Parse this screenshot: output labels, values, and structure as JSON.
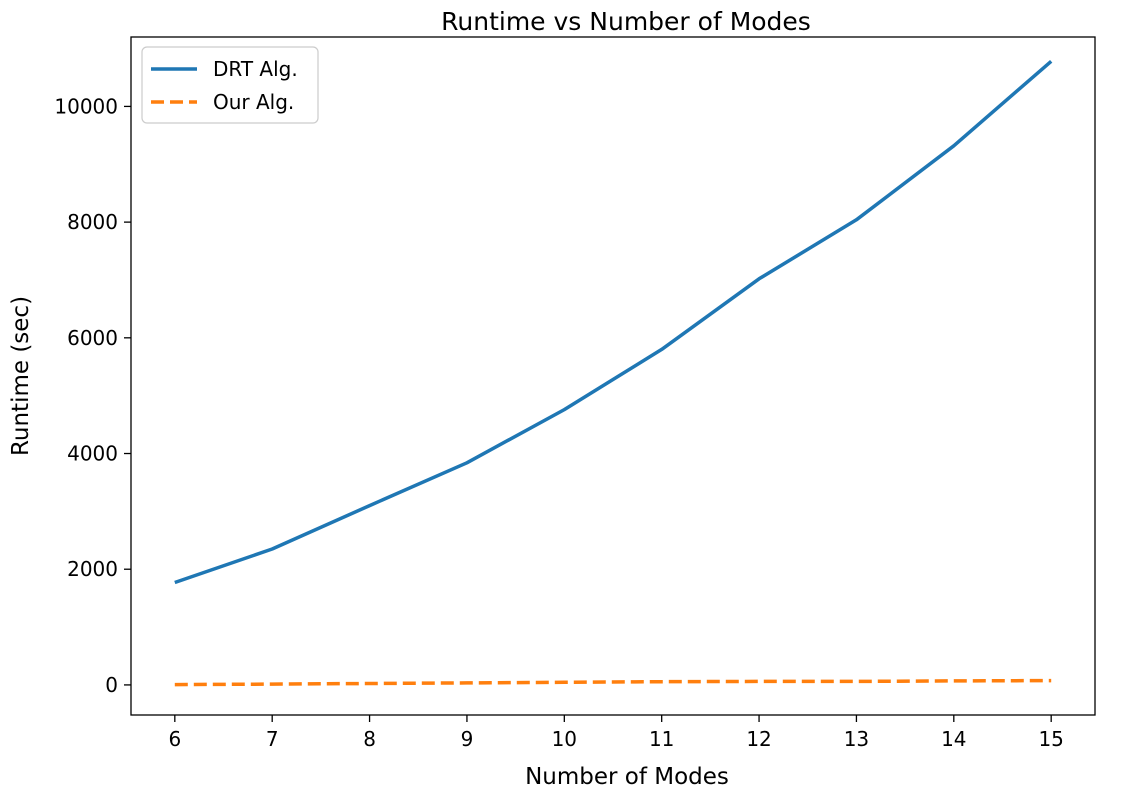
{
  "chart_data": {
    "type": "line",
    "title": "Runtime vs Number of Modes",
    "xlabel": "Number of Modes",
    "ylabel": "Runtime (sec)",
    "x": [
      6,
      7,
      8,
      9,
      10,
      11,
      12,
      13,
      14,
      15
    ],
    "xlim": [
      5.55,
      15.45
    ],
    "ylim": [
      -520,
      11200
    ],
    "xticks": [
      6,
      7,
      8,
      9,
      10,
      11,
      12,
      13,
      14,
      15
    ],
    "yticks": [
      0,
      2000,
      4000,
      6000,
      8000,
      10000
    ],
    "grid": false,
    "legend": "top-left",
    "series": [
      {
        "name": "DRT Alg.",
        "color": "#1f77b4",
        "style": "solid",
        "values": [
          1770,
          2350,
          3100,
          3840,
          4760,
          5800,
          7020,
          8040,
          9320,
          10780
        ]
      },
      {
        "name": "Our Alg.",
        "color": "#ff7f0e",
        "style": "dashed",
        "values": [
          5,
          15,
          25,
          35,
          45,
          55,
          60,
          60,
          70,
          75
        ]
      }
    ]
  }
}
